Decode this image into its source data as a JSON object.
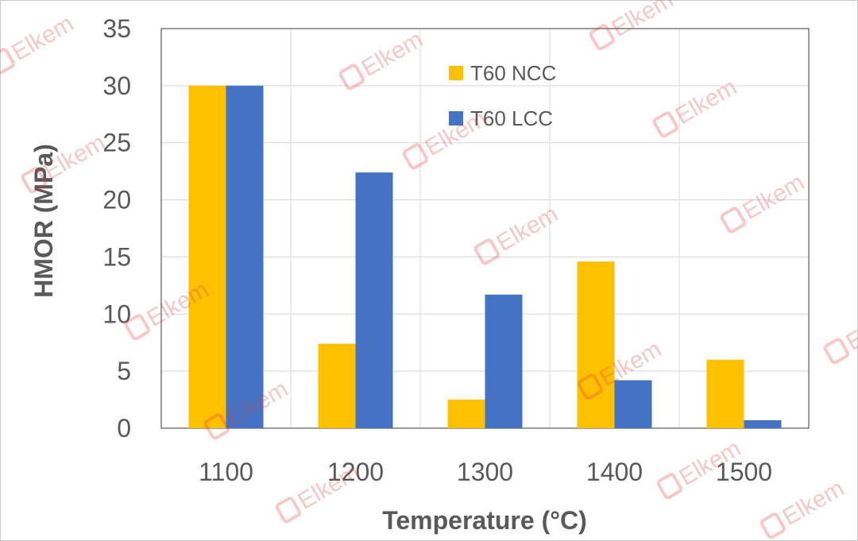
{
  "chart_data": {
    "type": "bar",
    "categories": [
      "1100",
      "1200",
      "1300",
      "1400",
      "1500"
    ],
    "series": [
      {
        "name": "T60 NCC",
        "color": "#ffc000",
        "values": [
          30,
          7.4,
          2.5,
          14.6,
          6.0
        ]
      },
      {
        "name": "T60 LCC",
        "color": "#4472c4",
        "values": [
          30,
          22.4,
          11.7,
          4.2,
          0.7
        ]
      }
    ],
    "title": "",
    "xlabel": "Temperature (°C)",
    "ylabel": "HMOR (MPa)",
    "ylim": [
      0,
      35
    ],
    "yticks": [
      0,
      5,
      10,
      15,
      20,
      25,
      30,
      35
    ],
    "grid": true,
    "legend_position": "top-center"
  },
  "watermark": {
    "text": "Elkem",
    "color": "#e23a3a"
  }
}
